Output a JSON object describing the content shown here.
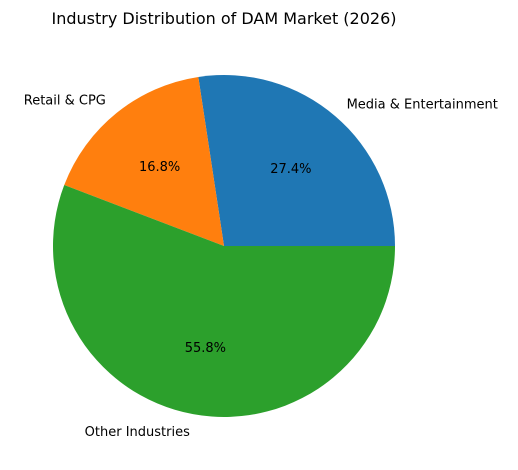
{
  "chart_data": {
    "type": "pie",
    "title": "Industry Distribution of DAM Market (2026)",
    "categories": [
      "Media & Entertainment",
      "Retail & CPG",
      "Other Industries"
    ],
    "values": [
      27.4,
      16.8,
      55.8
    ],
    "value_labels": [
      "27.4%",
      "16.8%",
      "55.8%"
    ],
    "colors": [
      "#1f77b4",
      "#ff7f0e",
      "#2ca02c"
    ],
    "start_angle_deg": 0,
    "direction": "counterclockwise",
    "legend": "none"
  }
}
